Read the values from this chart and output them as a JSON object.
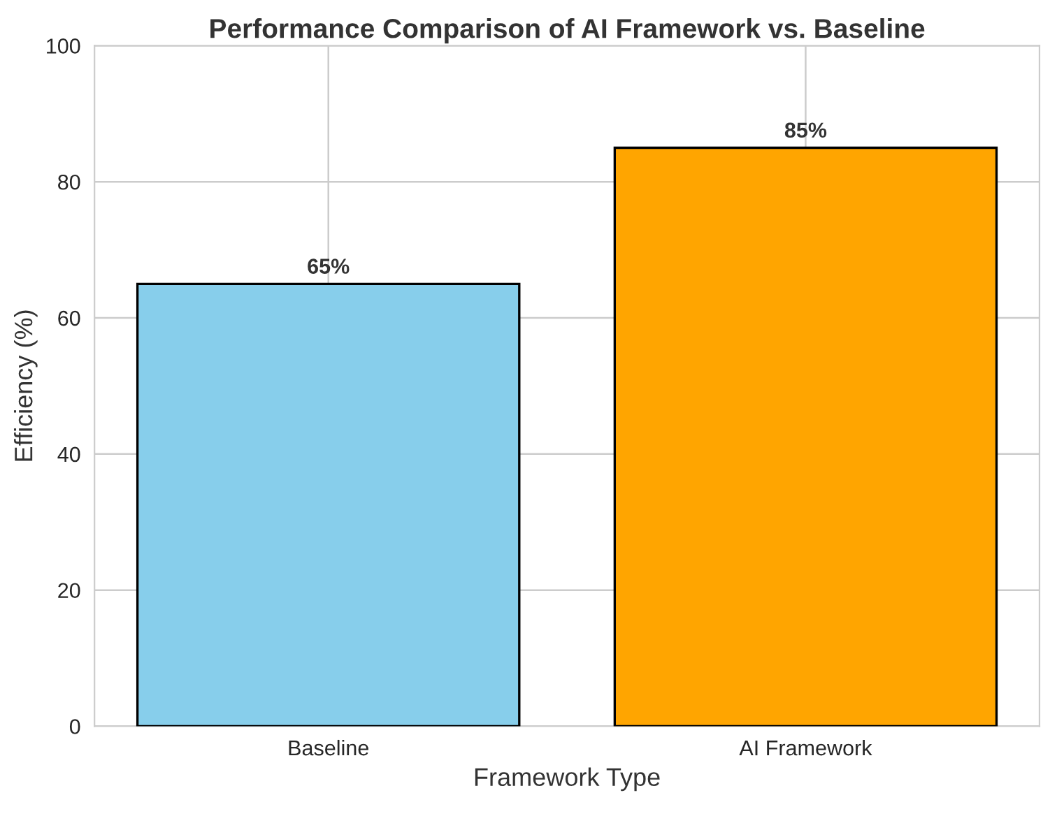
{
  "chart_data": {
    "type": "bar",
    "title": "Performance Comparison of AI Framework vs. Baseline",
    "xlabel": "Framework Type",
    "ylabel": "Efficiency (%)",
    "categories": [
      "Baseline",
      "AI Framework"
    ],
    "values": [
      65,
      85
    ],
    "colors": [
      "#87ceeb",
      "#ffa500"
    ],
    "value_labels": [
      "65%",
      "85%"
    ],
    "ylim": [
      0,
      100
    ],
    "yticks": [
      0,
      20,
      40,
      60,
      80,
      100
    ],
    "grid": true
  }
}
